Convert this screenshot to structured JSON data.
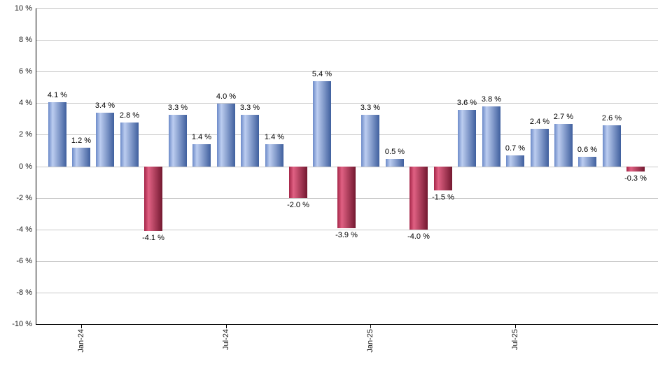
{
  "chart_data": {
    "type": "bar",
    "title": "",
    "xlabel": "",
    "ylabel": "",
    "unit": "%",
    "ylim": [
      -10,
      10
    ],
    "grid": true,
    "legend_position": "none",
    "values": [
      4.1,
      1.2,
      3.4,
      2.8,
      -4.1,
      3.3,
      1.4,
      4.0,
      3.3,
      1.4,
      -2.0,
      5.4,
      -3.9,
      3.3,
      0.5,
      -4.0,
      -1.5,
      3.6,
      3.8,
      0.7,
      2.4,
      2.7,
      0.6,
      2.6,
      -0.3
    ],
    "bar_labels": [
      "4.1 %",
      "1.2 %",
      "3.4 %",
      "2.8 %",
      "-4.1 %",
      "3.3 %",
      "1.4 %",
      "4.0 %",
      "3.3 %",
      "1.4 %",
      "-2.0 %",
      "5.4 %",
      "-3.9 %",
      "3.3 %",
      "0.5 %",
      "-4.0 %",
      "-1.5 %",
      "3.6 %",
      "3.8 %",
      "0.7 %",
      "2.4 %",
      "2.7 %",
      "0.6 %",
      "2.6 %",
      "-0.3 %"
    ],
    "x_ticks": [
      {
        "label": "Jan-24",
        "index": 1
      },
      {
        "label": "Jul-24",
        "index": 7
      },
      {
        "label": "Jan-25",
        "index": 13
      },
      {
        "label": "Jul-25",
        "index": 19
      }
    ],
    "y_ticks": [
      {
        "value": 10,
        "label": "10 %"
      },
      {
        "value": 8,
        "label": "8 %"
      },
      {
        "value": 6,
        "label": "6 %"
      },
      {
        "value": 4,
        "label": "4 %"
      },
      {
        "value": 2,
        "label": "2 %"
      },
      {
        "value": 0,
        "label": "0 %"
      },
      {
        "value": -2,
        "label": "-2 %"
      },
      {
        "value": -4,
        "label": "-4 %"
      },
      {
        "value": -6,
        "label": "-6 %"
      },
      {
        "value": -8,
        "label": "-8 %"
      },
      {
        "value": -10,
        "label": "-10 %"
      }
    ],
    "colors": {
      "positive_edge": "#6c8ac8",
      "positive_highlight": "#bccdf0",
      "positive_end": "#3f5f9e",
      "negative_edge": "#a42548",
      "negative_highlight": "#e06183",
      "negative_end": "#731830",
      "gridline": "#c9c9c9",
      "axis": "#000000",
      "label_text": "#1a1a1a"
    }
  }
}
